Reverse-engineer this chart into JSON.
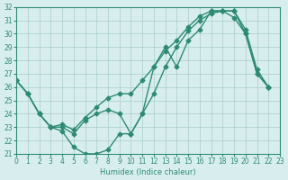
{
  "xlabel": "Humidex (Indice chaleur)",
  "xlim": [
    0,
    23
  ],
  "ylim": [
    21,
    32
  ],
  "yticks": [
    21,
    22,
    23,
    24,
    25,
    26,
    27,
    28,
    29,
    30,
    31,
    32
  ],
  "xticks": [
    0,
    1,
    2,
    3,
    4,
    5,
    6,
    7,
    8,
    9,
    10,
    11,
    12,
    13,
    14,
    15,
    16,
    17,
    18,
    19,
    20,
    21,
    22,
    23
  ],
  "line_color": "#2e8b73",
  "bg_color": "#d8eeee",
  "grid_color": "#aacccc",
  "line1_x": [
    0,
    1,
    2,
    3,
    4,
    5,
    6,
    7,
    8,
    9,
    10,
    11,
    12,
    13,
    14,
    15,
    16,
    17,
    18,
    19,
    20,
    21,
    22
  ],
  "line1_y": [
    26.5,
    25.5,
    24.0,
    23.0,
    22.7,
    21.5,
    21.0,
    21.0,
    21.3,
    22.5,
    22.5,
    24.0,
    27.5,
    29.0,
    27.5,
    29.5,
    30.3,
    31.7,
    31.7,
    31.7,
    30.0,
    27.0,
    26.0
  ],
  "line2_x": [
    0,
    1,
    2,
    3,
    4,
    5,
    6,
    7,
    8,
    9,
    10,
    11,
    12,
    13,
    14,
    15,
    16,
    17,
    18,
    19,
    20,
    21,
    22
  ],
  "line2_y": [
    26.5,
    25.5,
    24.0,
    23.0,
    23.0,
    22.5,
    23.5,
    24.0,
    24.3,
    24.0,
    22.5,
    24.0,
    25.5,
    27.5,
    29.0,
    30.2,
    31.0,
    31.5,
    31.7,
    31.2,
    30.0,
    27.0,
    26.0
  ],
  "line3_x": [
    0,
    1,
    2,
    3,
    4,
    5,
    6,
    7,
    8,
    9,
    10,
    11,
    12,
    13,
    14,
    15,
    16,
    17,
    18,
    19,
    20,
    21,
    22
  ],
  "line3_y": [
    26.5,
    25.5,
    24.0,
    23.0,
    23.2,
    22.8,
    23.7,
    24.5,
    25.2,
    25.5,
    25.5,
    26.5,
    27.5,
    28.7,
    29.5,
    30.5,
    31.3,
    31.7,
    31.7,
    31.7,
    30.3,
    27.3,
    26.0
  ]
}
